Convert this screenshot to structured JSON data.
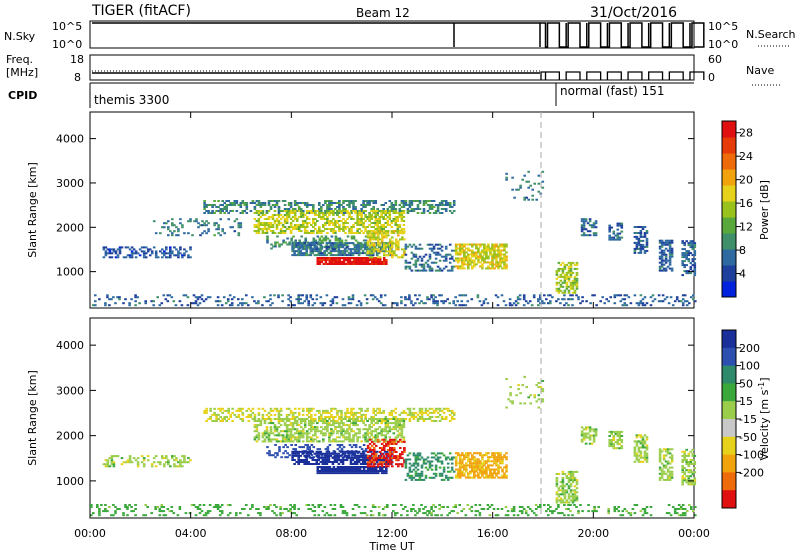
{
  "header": {
    "title": "TIGER (fitACF)",
    "beam": "Beam 12",
    "date": "31/Oct/2016"
  },
  "top_panels": {
    "nsky": {
      "label": "N.Sky",
      "ticks": [
        "10^5",
        "10^0"
      ],
      "right_label": "N.Search",
      "right_ticks": [
        "10^5",
        "10^0"
      ]
    },
    "freq": {
      "label_lines": [
        "Freq.",
        "[MHz]"
      ],
      "ticks": [
        "18",
        "8"
      ],
      "right_label": "Nave",
      "right_ticks": [
        "60",
        "0"
      ]
    },
    "cpid": {
      "label": "CPID",
      "segments": [
        {
          "name": "themis 3300",
          "from_hour": 0,
          "to_hour": 18.1
        },
        {
          "name": "normal (fast) 151",
          "from_hour": 18.1,
          "to_hour": 24
        }
      ]
    }
  },
  "colors": {
    "power": [
      "#0022dd",
      "#1e3f9b",
      "#2e6aa0",
      "#3f8f6a",
      "#59a83b",
      "#9ac21c",
      "#e7d21b",
      "#f0a30c",
      "#ee6a0a",
      "#e63a08",
      "#e01010"
    ],
    "velocity": [
      "#e01010",
      "#ee6a0a",
      "#f0a30c",
      "#e7d21b",
      "#c8c8c8",
      "#9acd4a",
      "#3aa83a",
      "#2e8a6a",
      "#2c4fb0",
      "#1a2f9a"
    ]
  },
  "chart_data": [
    {
      "type": "heatmap",
      "name": "power-panel",
      "title": "Power",
      "xlabel": "",
      "ylabel": "Slant Range [km]",
      "xlim": [
        0,
        24
      ],
      "ylim": [
        180,
        4600
      ],
      "x_ticks": [
        "00:00",
        "04:00",
        "08:00",
        "12:00",
        "16:00",
        "20:00",
        "00:00"
      ],
      "y_ticks": [
        1000,
        2000,
        3000,
        4000
      ],
      "colorbar": {
        "label": "Power [dB]",
        "ticks": [
          4,
          8,
          12,
          16,
          20,
          24,
          28
        ],
        "range": [
          0,
          30
        ]
      },
      "blobs": [
        {
          "t0": 0.0,
          "t1": 24.0,
          "r0": 220,
          "r1": 460,
          "v": 6,
          "d": 0.22
        },
        {
          "t0": 0.5,
          "t1": 4.0,
          "r0": 1300,
          "r1": 1550,
          "v": 5,
          "d": 0.45
        },
        {
          "t0": 2.5,
          "t1": 6.0,
          "r0": 1800,
          "r1": 2200,
          "v": 8,
          "d": 0.2
        },
        {
          "t0": 4.5,
          "t1": 14.5,
          "r0": 2300,
          "r1": 2600,
          "v": 9,
          "d": 0.45
        },
        {
          "t0": 6.5,
          "t1": 12.5,
          "r0": 1850,
          "r1": 2350,
          "v": 16,
          "d": 0.55
        },
        {
          "t0": 7.0,
          "t1": 11.0,
          "r0": 1500,
          "r1": 1800,
          "v": 10,
          "d": 0.35
        },
        {
          "t0": 9.0,
          "t1": 11.8,
          "r0": 1150,
          "r1": 1300,
          "v": 29,
          "d": 0.95
        },
        {
          "t0": 8.0,
          "t1": 12.0,
          "r0": 1350,
          "r1": 1650,
          "v": 8,
          "d": 0.7
        },
        {
          "t0": 11.0,
          "t1": 12.5,
          "r0": 1300,
          "r1": 1900,
          "v": 17,
          "d": 0.55
        },
        {
          "t0": 12.5,
          "t1": 14.5,
          "r0": 1000,
          "r1": 1600,
          "v": 7,
          "d": 0.35
        },
        {
          "t0": 14.5,
          "t1": 16.5,
          "r0": 1050,
          "r1": 1600,
          "v": 17,
          "d": 0.7
        },
        {
          "t0": 16.5,
          "t1": 18.0,
          "r0": 2600,
          "r1": 3300,
          "v": 8,
          "d": 0.12
        },
        {
          "t0": 18.5,
          "t1": 19.3,
          "r0": 500,
          "r1": 1200,
          "v": 15,
          "d": 0.6
        },
        {
          "t0": 19.5,
          "t1": 20.1,
          "r0": 1800,
          "r1": 2200,
          "v": 7,
          "d": 0.6
        },
        {
          "t0": 20.6,
          "t1": 21.1,
          "r0": 1700,
          "r1": 2100,
          "v": 6,
          "d": 0.6
        },
        {
          "t0": 21.6,
          "t1": 22.1,
          "r0": 1400,
          "r1": 2000,
          "v": 6,
          "d": 0.6
        },
        {
          "t0": 22.6,
          "t1": 23.1,
          "r0": 1000,
          "r1": 1700,
          "v": 6,
          "d": 0.6
        },
        {
          "t0": 23.5,
          "t1": 24.0,
          "r0": 900,
          "r1": 1700,
          "v": 6,
          "d": 0.55
        }
      ]
    },
    {
      "type": "heatmap",
      "name": "velocity-panel",
      "title": "Velocity",
      "xlabel": "Time UT",
      "ylabel": "Slant Range [km]",
      "xlim": [
        0,
        24
      ],
      "ylim": [
        180,
        4600
      ],
      "x_ticks": [
        "00:00",
        "04:00",
        "08:00",
        "12:00",
        "16:00",
        "20:00",
        "00:00"
      ],
      "y_ticks": [
        1000,
        2000,
        3000,
        4000
      ],
      "colorbar": {
        "label_main": "Velocity [m s",
        "label_sup": "-1",
        "label_end": "]",
        "ticks": [
          200,
          100,
          50,
          15,
          -15,
          -50,
          -100,
          -200
        ]
      },
      "blobs": [
        {
          "t0": 0.0,
          "t1": 24.0,
          "r0": 220,
          "r1": 460,
          "v": 30,
          "d": 0.22
        },
        {
          "t0": 0.5,
          "t1": 4.0,
          "r0": 1300,
          "r1": 1550,
          "v": 0,
          "d": 0.35
        },
        {
          "t0": 4.5,
          "t1": 14.5,
          "r0": 2300,
          "r1": 2600,
          "v": -20,
          "d": 0.45
        },
        {
          "t0": 6.5,
          "t1": 12.5,
          "r0": 1850,
          "r1": 2350,
          "v": 0,
          "d": 0.55
        },
        {
          "t0": 7.0,
          "t1": 11.0,
          "r0": 1500,
          "r1": 1800,
          "v": 150,
          "d": 0.35
        },
        {
          "t0": 9.0,
          "t1": 11.8,
          "r0": 1150,
          "r1": 1300,
          "v": 240,
          "d": 0.95
        },
        {
          "t0": 8.0,
          "t1": 12.0,
          "r0": 1350,
          "r1": 1650,
          "v": 240,
          "d": 0.7
        },
        {
          "t0": 11.0,
          "t1": 12.5,
          "r0": 1300,
          "r1": 1900,
          "v": -210,
          "d": 0.55
        },
        {
          "t0": 12.5,
          "t1": 14.5,
          "r0": 1000,
          "r1": 1600,
          "v": 60,
          "d": 0.35
        },
        {
          "t0": 14.5,
          "t1": 16.5,
          "r0": 1050,
          "r1": 1600,
          "v": -60,
          "d": 0.7
        },
        {
          "t0": 16.5,
          "t1": 18.0,
          "r0": 2600,
          "r1": 3300,
          "v": 0,
          "d": 0.12
        },
        {
          "t0": 18.5,
          "t1": 19.3,
          "r0": 500,
          "r1": 1200,
          "v": 0,
          "d": 0.6
        },
        {
          "t0": 19.5,
          "t1": 20.1,
          "r0": 1800,
          "r1": 2200,
          "v": 0,
          "d": 0.6
        },
        {
          "t0": 20.6,
          "t1": 21.1,
          "r0": 1700,
          "r1": 2100,
          "v": 0,
          "d": 0.6
        },
        {
          "t0": 21.6,
          "t1": 22.1,
          "r0": 1400,
          "r1": 2000,
          "v": 0,
          "d": 0.6
        },
        {
          "t0": 22.6,
          "t1": 23.1,
          "r0": 1000,
          "r1": 1700,
          "v": 0,
          "d": 0.6
        },
        {
          "t0": 23.5,
          "t1": 24.0,
          "r0": 900,
          "r1": 1700,
          "v": 0,
          "d": 0.55
        }
      ]
    }
  ]
}
